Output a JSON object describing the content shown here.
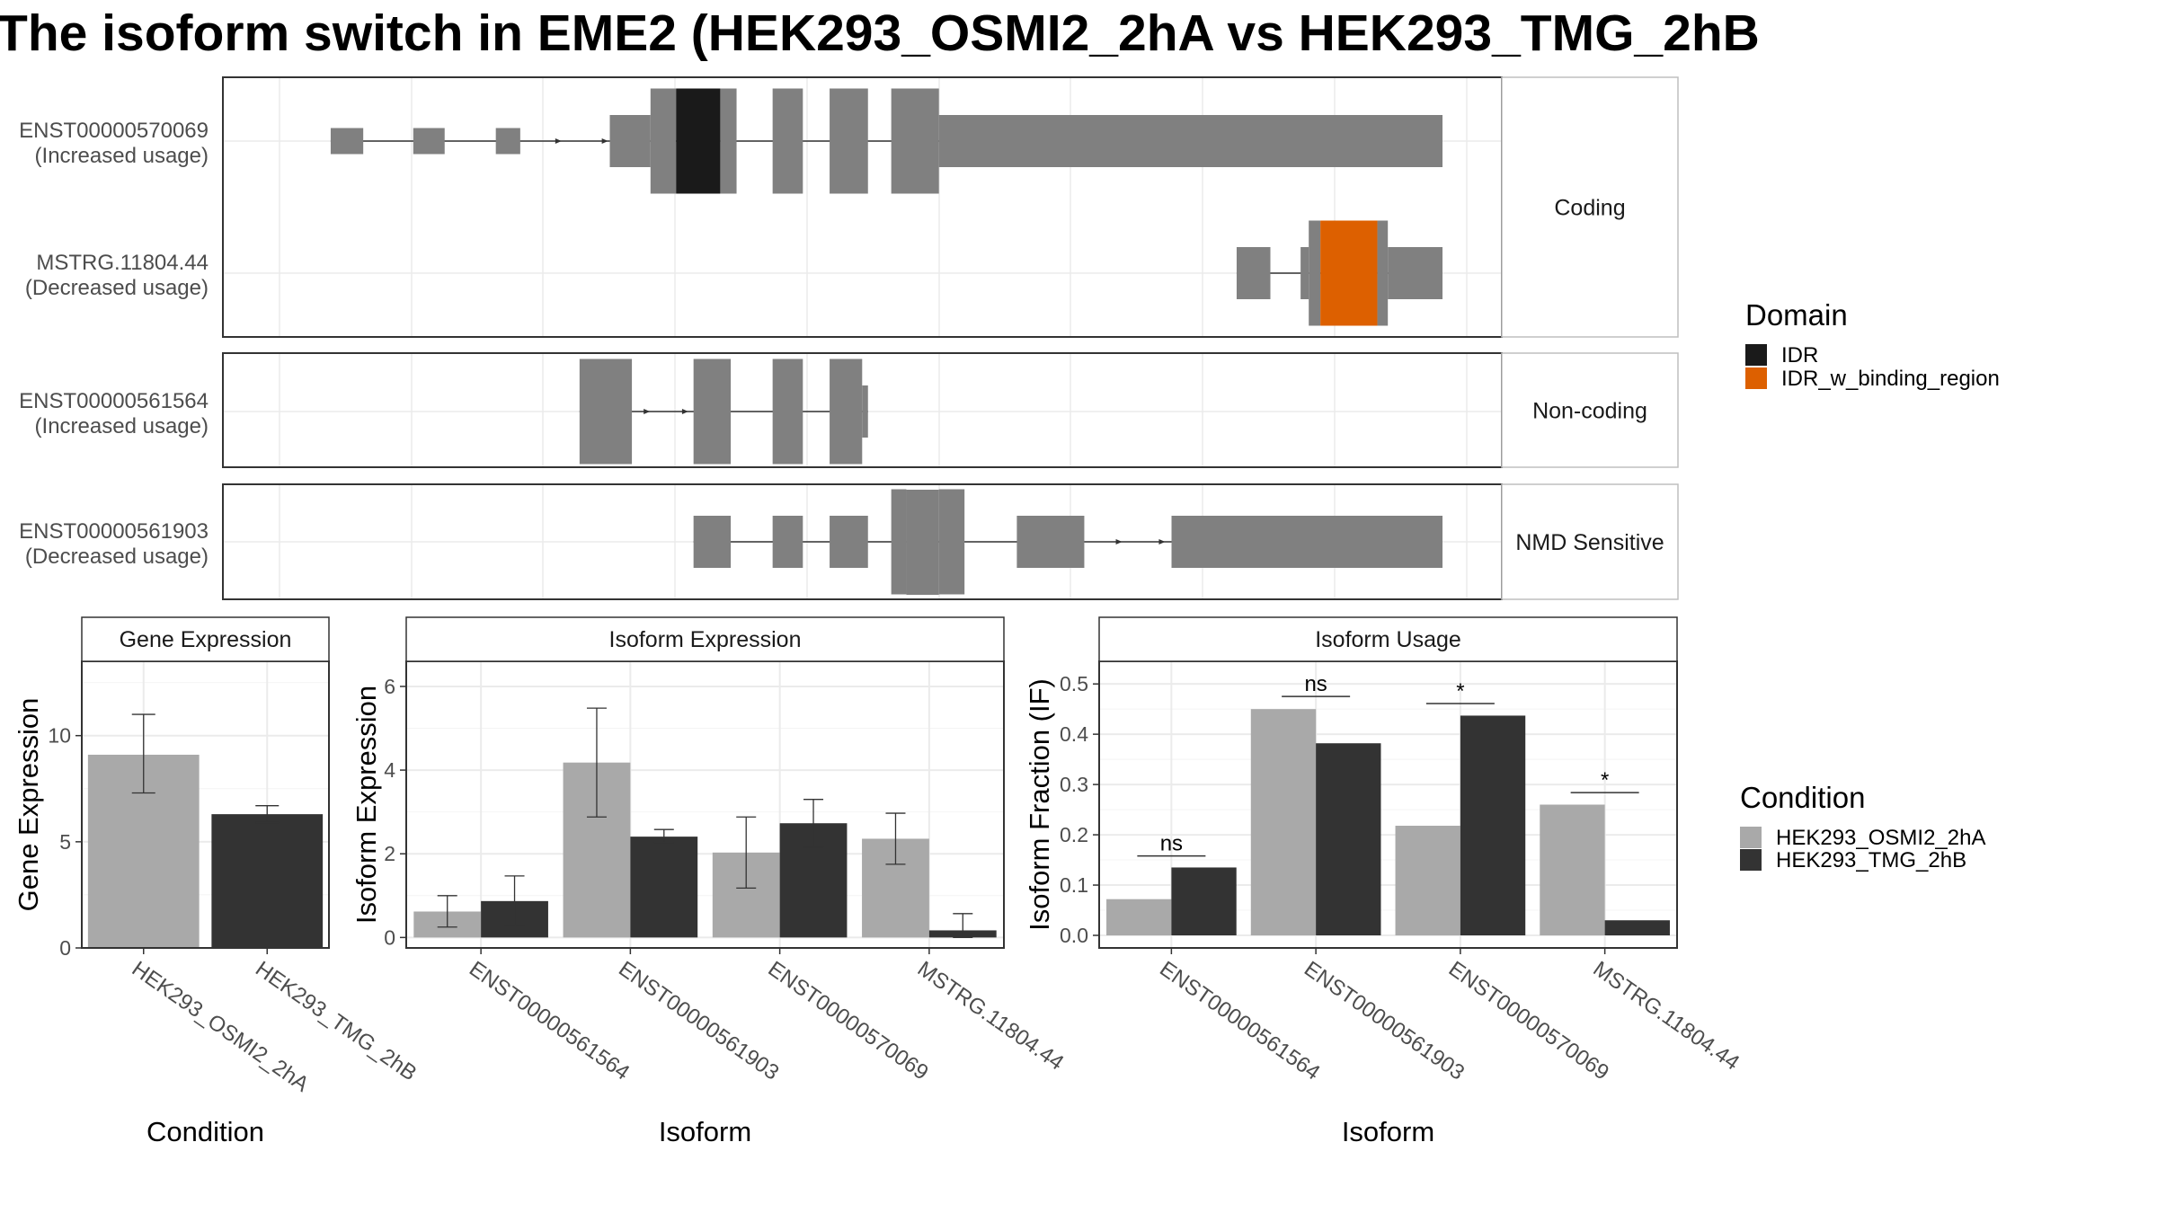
{
  "title": "The isoform switch in EME2 (HEK293_OSMI2_2hA vs HEK293_TMG_2hB",
  "colors": {
    "exon": "#808080",
    "idr": "#1a1a1a",
    "idr_binding": "#dd6000",
    "cond_a": "#a9a9a9",
    "cond_b": "#333333",
    "grid": "#ebebeb",
    "strip": "#ffffff",
    "border": "#333333"
  },
  "structure": {
    "groups": [
      {
        "label": "Coding",
        "transcripts": [
          {
            "id": "ENST00000570069",
            "note": "(Increased usage)",
            "exons": [
              [
                0.044,
                0.072,
                "thin"
              ],
              [
                0.115,
                0.142,
                "thin"
              ],
              [
                0.186,
                0.207,
                "thin"
              ],
              [
                0.284,
                0.319,
                "mid"
              ],
              [
                0.319,
                0.341,
                "thick"
              ],
              [
                0.341,
                0.379,
                "idr"
              ],
              [
                0.379,
                0.393,
                "thick"
              ],
              [
                0.424,
                0.45,
                "thick"
              ],
              [
                0.473,
                0.506,
                "thick"
              ],
              [
                0.526,
                0.567,
                "thick"
              ],
              [
                0.567,
                1.0,
                "mid"
              ]
            ],
            "arrows": [
              0.241,
              0.281
            ]
          },
          {
            "id": "MSTRG.11804.44",
            "note": "(Decreased usage)",
            "exons": [
              [
                0.823,
                0.852,
                "mid"
              ],
              [
                0.878,
                0.885,
                "mid"
              ],
              [
                0.885,
                0.895,
                "thick"
              ],
              [
                0.895,
                0.944,
                "idr_binding"
              ],
              [
                0.944,
                0.953,
                "thick"
              ],
              [
                0.953,
                1.0,
                "mid"
              ]
            ],
            "arrows": []
          }
        ]
      },
      {
        "label": "Non-coding",
        "transcripts": [
          {
            "id": "ENST00000561564",
            "note": "(Increased usage)",
            "exons": [
              [
                0.258,
                0.303,
                "thick"
              ],
              [
                0.356,
                0.388,
                "thick"
              ],
              [
                0.424,
                0.45,
                "thick"
              ],
              [
                0.473,
                0.501,
                "thick"
              ],
              [
                0.501,
                0.506,
                "mid"
              ]
            ],
            "arrows": [
              0.317,
              0.35
            ]
          }
        ]
      },
      {
        "label": "NMD Sensitive",
        "transcripts": [
          {
            "id": "ENST00000561903",
            "note": "(Decreased usage)",
            "exons": [
              [
                0.356,
                0.388,
                "mid"
              ],
              [
                0.424,
                0.45,
                "mid"
              ],
              [
                0.473,
                0.506,
                "mid"
              ],
              [
                0.526,
                0.539,
                "thick"
              ],
              [
                0.539,
                0.567,
                "xthick"
              ],
              [
                0.567,
                0.589,
                "thick"
              ],
              [
                0.634,
                0.692,
                "mid"
              ],
              [
                0.767,
                1.0,
                "mid"
              ]
            ],
            "arrows": [
              0.723,
              0.76
            ]
          }
        ]
      }
    ],
    "legend": {
      "title": "Domain",
      "items": [
        {
          "label": "IDR",
          "color": "#1a1a1a"
        },
        {
          "label": "IDR_w_binding_region",
          "color": "#dd6000"
        }
      ]
    }
  },
  "condition_legend": {
    "title": "Condition",
    "items": [
      {
        "label": "HEK293_OSMI2_2hA",
        "color": "#a9a9a9"
      },
      {
        "label": "HEK293_TMG_2hB",
        "color": "#333333"
      }
    ]
  },
  "chart_data": [
    {
      "type": "bar",
      "title": "Gene Expression",
      "xlabel": "Condition",
      "ylabel": "Gene Expression",
      "ylim": [
        0,
        13.5
      ],
      "yticks": [
        0,
        5,
        10
      ],
      "categories": [
        "HEK293_OSMI2_2hA",
        "HEK293_TMG_2hB"
      ],
      "values": [
        9.1,
        6.3
      ],
      "errors": [
        [
          7.3,
          11.0
        ],
        [
          5.9,
          6.7
        ]
      ]
    },
    {
      "type": "bar",
      "title": "Isoform Expression",
      "xlabel": "Isoform",
      "ylabel": "Isoform Expression",
      "ylim": [
        -0.25,
        6.6
      ],
      "yticks": [
        0,
        2,
        4,
        6
      ],
      "categories": [
        "ENST00000561564",
        "ENST00000561903",
        "ENST00000570069",
        "MSTRG.11804.44"
      ],
      "series": [
        {
          "name": "HEK293_OSMI2_2hA",
          "values": [
            0.62,
            4.18,
            2.03,
            2.36
          ],
          "errors": [
            [
              0.25,
              1.0
            ],
            [
              2.88,
              5.48
            ],
            [
              1.18,
              2.88
            ],
            [
              1.75,
              2.97
            ]
          ]
        },
        {
          "name": "HEK293_TMG_2hB",
          "values": [
            0.87,
            2.41,
            2.73,
            0.17
          ],
          "errors": [
            [
              0.28,
              1.47
            ],
            [
              2.27,
              2.58
            ],
            [
              2.16,
              3.3
            ],
            [
              0.0,
              0.57
            ]
          ]
        }
      ]
    },
    {
      "type": "bar",
      "title": "Isoform Usage",
      "xlabel": "Isoform",
      "ylabel": "Isoform Fraction (IF)",
      "ylim": [
        -0.025,
        0.545
      ],
      "yticks": [
        0.0,
        0.1,
        0.2,
        0.3,
        0.4,
        0.5
      ],
      "yticklabels": [
        "0.0",
        "0.1",
        "0.2",
        "0.3",
        "0.4",
        "0.5"
      ],
      "categories": [
        "ENST00000561564",
        "ENST00000561903",
        "ENST00000570069",
        "MSTRG.11804.44"
      ],
      "series": [
        {
          "name": "HEK293_OSMI2_2hA",
          "values": [
            0.072,
            0.45,
            0.218,
            0.26
          ]
        },
        {
          "name": "HEK293_TMG_2hB",
          "values": [
            0.135,
            0.382,
            0.437,
            0.03
          ]
        }
      ],
      "significance": [
        {
          "label": "ns",
          "y": 0.158
        },
        {
          "label": "ns",
          "y": 0.475
        },
        {
          "label": "*",
          "y": 0.461
        },
        {
          "label": "*",
          "y": 0.284
        }
      ]
    }
  ]
}
